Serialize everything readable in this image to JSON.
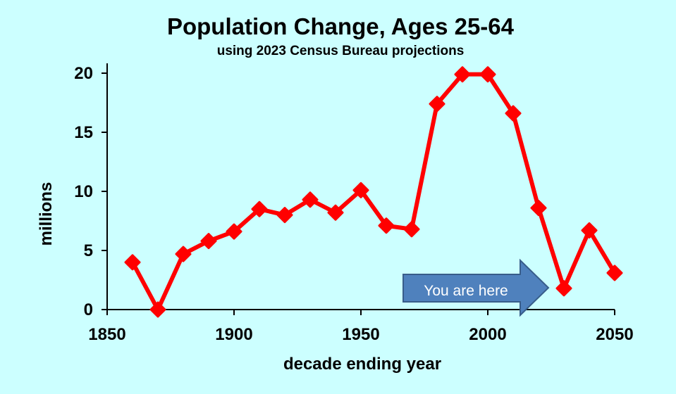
{
  "chart_data": {
    "type": "line",
    "title": "Population Change, Ages 25-64",
    "subtitle": "using 2023 Census Bureau projections",
    "xlabel": "decade ending year",
    "ylabel": "millions",
    "xlim": [
      1850,
      2050
    ],
    "ylim": [
      0,
      20
    ],
    "x_ticks": [
      "1850",
      "1900",
      "1950",
      "2000",
      "2050"
    ],
    "y_ticks": [
      "0",
      "5",
      "10",
      "15",
      "20"
    ],
    "grid": false,
    "series": [
      {
        "x": [
          1860,
          1870,
          1880,
          1890,
          1900,
          1910,
          1920,
          1930,
          1940,
          1950,
          1960,
          1970,
          1980,
          1990,
          2000,
          2010,
          2020,
          2030,
          2040,
          2050
        ],
        "values": [
          4.0,
          0.0,
          4.7,
          5.8,
          6.6,
          8.5,
          8.0,
          9.3,
          8.2,
          10.1,
          7.1,
          6.8,
          17.4,
          19.9,
          19.9,
          16.6,
          8.6,
          1.8,
          6.7,
          3.1
        ],
        "color": "#ff0000"
      }
    ],
    "annotation": {
      "text": "You are here",
      "fill": "#4f81bd",
      "stroke": "#385d8a"
    }
  }
}
